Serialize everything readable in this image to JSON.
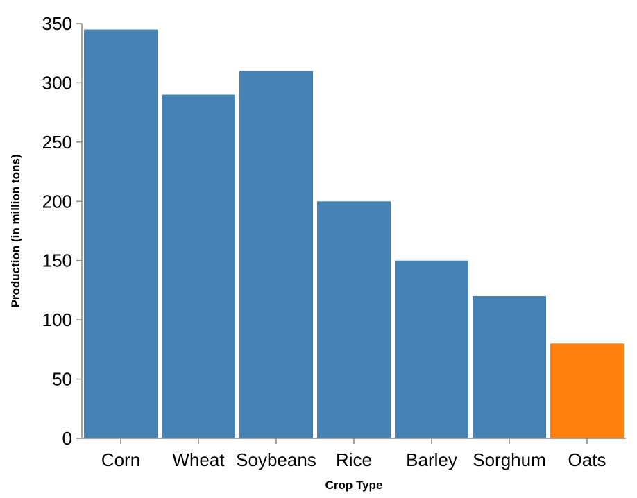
{
  "chart_data": {
    "type": "bar",
    "title": "",
    "xlabel": "Crop Type",
    "ylabel": "Production (in million tons)",
    "categories": [
      "Corn",
      "Wheat",
      "Soybeans",
      "Rice",
      "Barley",
      "Sorghum",
      "Oats"
    ],
    "values": [
      345,
      290,
      310,
      200,
      150,
      120,
      80
    ],
    "highlight_category": "Oats",
    "ylim": [
      0,
      350
    ],
    "yticks": [
      0,
      50,
      100,
      150,
      200,
      250,
      300,
      350
    ],
    "grid": false,
    "colors": {
      "default": "#4682b4",
      "highlight": "#ff7f0e"
    }
  }
}
